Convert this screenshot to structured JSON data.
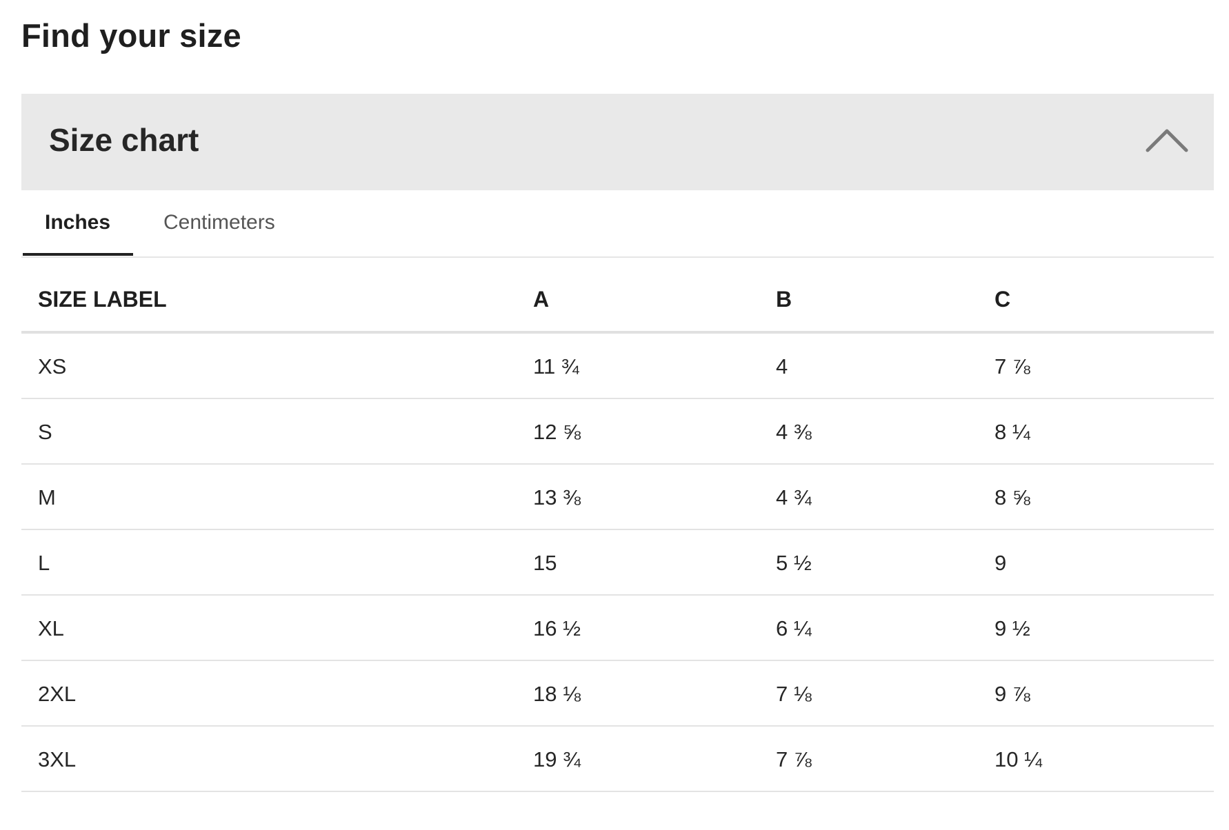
{
  "page_title": "Find your size",
  "accordion": {
    "title": "Size chart",
    "icon": "chevron-up-icon"
  },
  "tabs": [
    {
      "label": "Inches",
      "active": true
    },
    {
      "label": "Centimeters",
      "active": false
    }
  ],
  "table": {
    "headers": [
      "SIZE LABEL",
      "A",
      "B",
      "C"
    ],
    "rows": [
      [
        "XS",
        "11 ¾",
        "4",
        "7 ⅞"
      ],
      [
        "S",
        "12 ⅝",
        "4 ⅜",
        "8 ¼"
      ],
      [
        "M",
        "13 ⅜",
        "4 ¾",
        "8 ⅝"
      ],
      [
        "L",
        "15",
        "5 ½",
        "9"
      ],
      [
        "XL",
        "16 ½",
        "6 ¼",
        "9 ½"
      ],
      [
        "2XL",
        "18 ⅛",
        "7 ⅛",
        "9 ⅞"
      ],
      [
        "3XL",
        "19 ¾",
        "7 ⅞",
        "10 ¼"
      ]
    ]
  }
}
